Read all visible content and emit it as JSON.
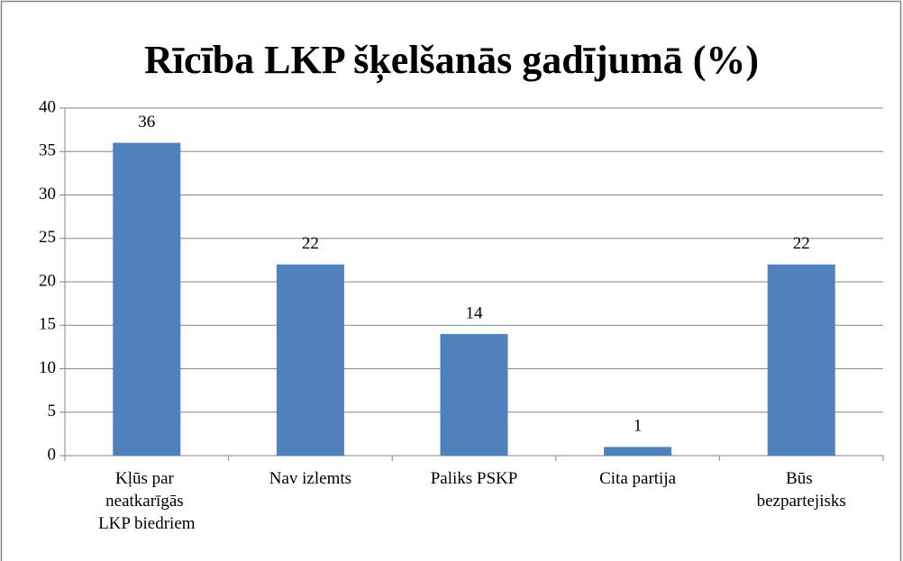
{
  "chart_data": {
    "type": "bar",
    "title": "Rīcība LKP šķelšanās gadījumā (%)",
    "categories": [
      "Kļūs par neatkarīgās LKP biedriem",
      "Nav izlemts",
      "Paliks PSKP",
      "Cita partija",
      "Būs bezpartejisks"
    ],
    "values": [
      36,
      22,
      14,
      1,
      22
    ],
    "color": "#4f81bd",
    "ylim": [
      0,
      40
    ],
    "yticks": [
      0,
      5,
      10,
      15,
      20,
      25,
      30,
      35,
      40
    ],
    "grid": true
  }
}
